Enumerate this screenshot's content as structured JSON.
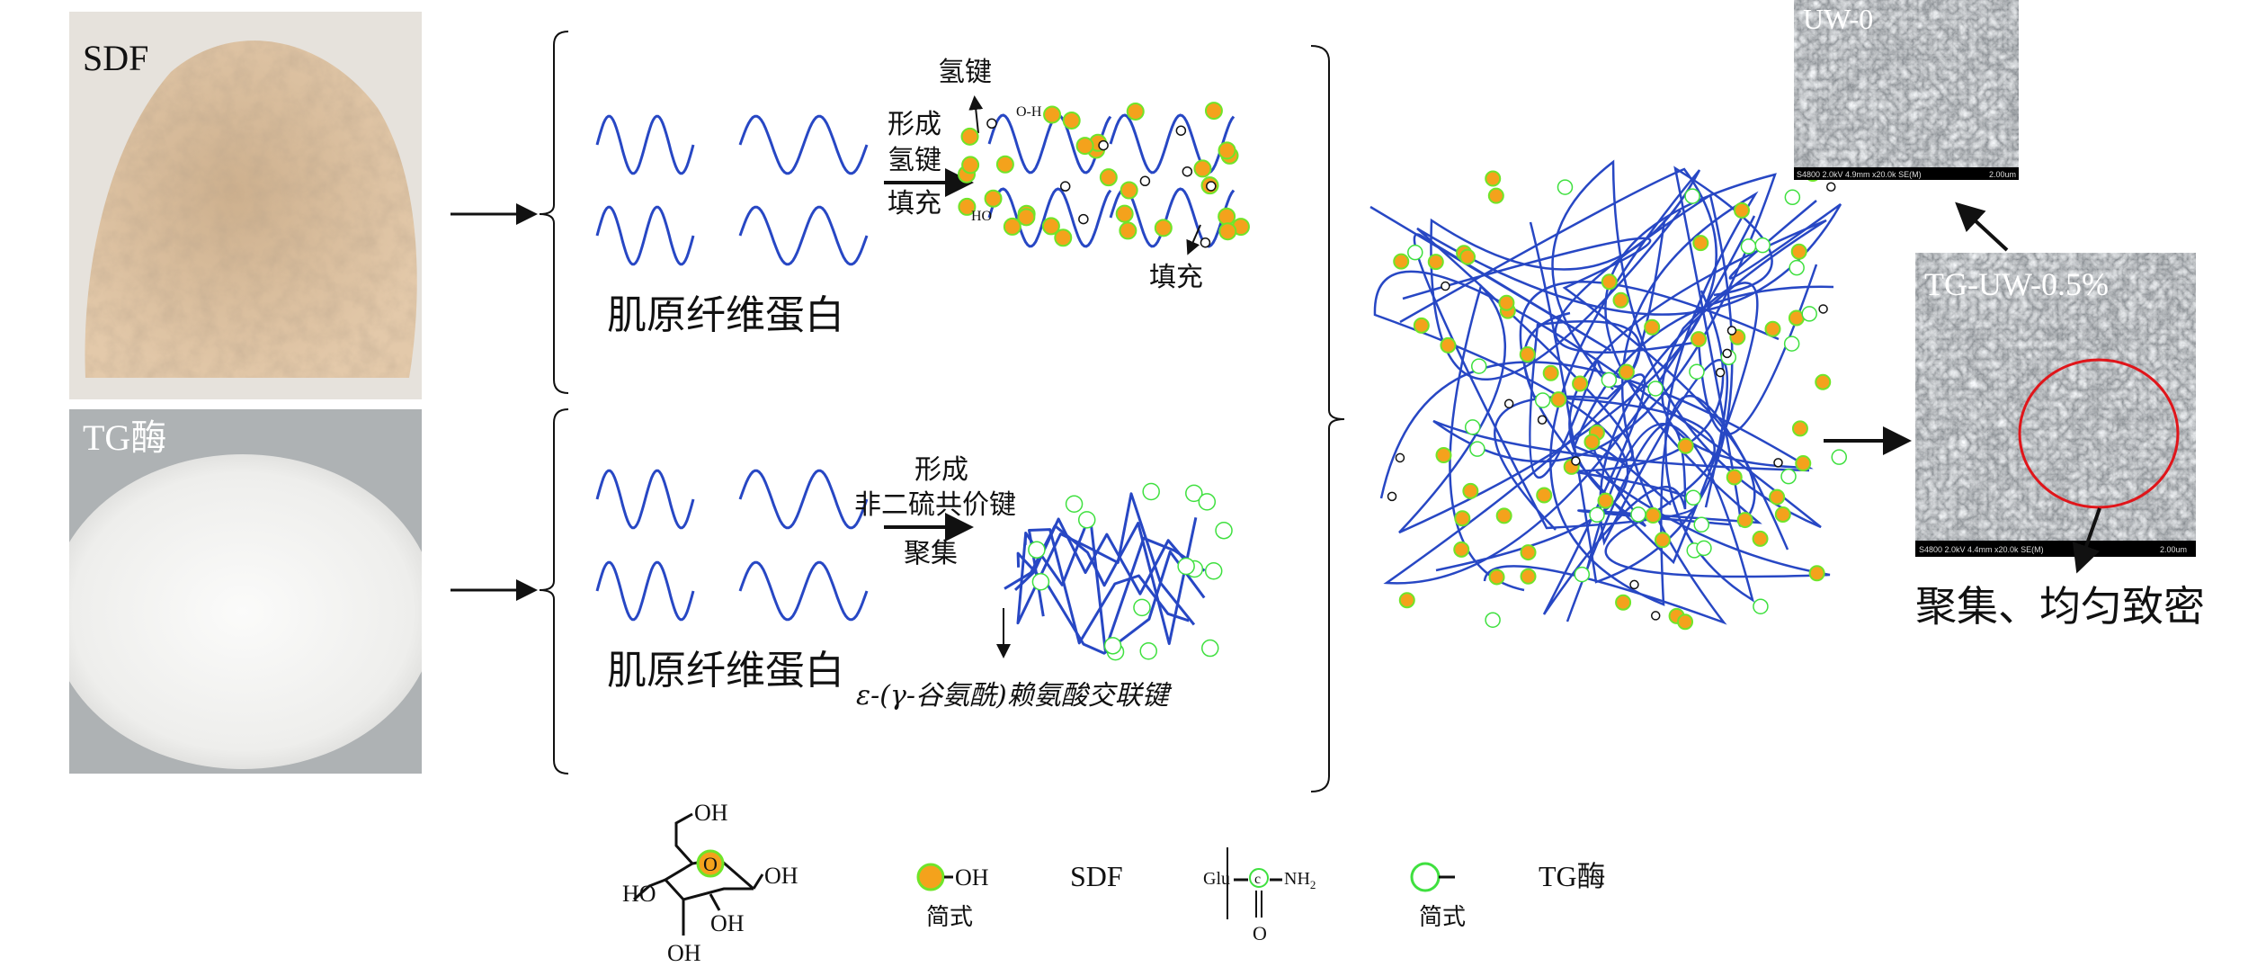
{
  "colors": {
    "chain": "#2747c4",
    "sdf_fill": "#f4a21c",
    "sdf_edge": "#6fe52a",
    "tg_ring": "#3fe03f",
    "highlight": "#e0151a",
    "sdf_photo": "#d8bc9c",
    "tg_photo": "#ecebe8"
  },
  "photos": {
    "sdf_label": "SDF",
    "tg_label": "TG酶"
  },
  "top_reaction": {
    "protein_label": "肌原纤维蛋白",
    "arrow_top1": "形成",
    "arrow_top2": "氢键",
    "arrow_bottom": "填充",
    "hbond_label": "氢键",
    "fill_label": "填充",
    "oh_label": "O-H",
    "ho_label": "HO",
    "o_label": "O"
  },
  "bottom_reaction": {
    "protein_label": "肌原纤维蛋白",
    "arrow_top1": "形成",
    "arrow_top2": "非二硫共价键",
    "arrow_bottom": "聚集",
    "crosslink_label": "ε-(γ-谷氨酰)赖氨酸交联键"
  },
  "sem": {
    "uw0": {
      "label": "UW-0",
      "info": "S4800 2.0kV 4.9mm x20.0k SE(M)",
      "scale": "2.00um"
    },
    "tg": {
      "label": "TG-UW-0.5%",
      "info": "S4800 2.0kV 4.4mm x20.0k SE(M)",
      "scale": "2.00um"
    },
    "conclusion": "聚集、均匀致密"
  },
  "legend": {
    "glucose_oh": "OH",
    "glucose_ho": "HO",
    "ring_o": "O",
    "sdf_short_oh": "OH",
    "short_form1": "简式",
    "sdf_name": "SDF",
    "glu": "Glu",
    "c": "c",
    "nh2": "NH",
    "nh2_sub": "2",
    "carbonyl_o": "O",
    "short_form2": "简式",
    "tg_name": "TG酶"
  }
}
